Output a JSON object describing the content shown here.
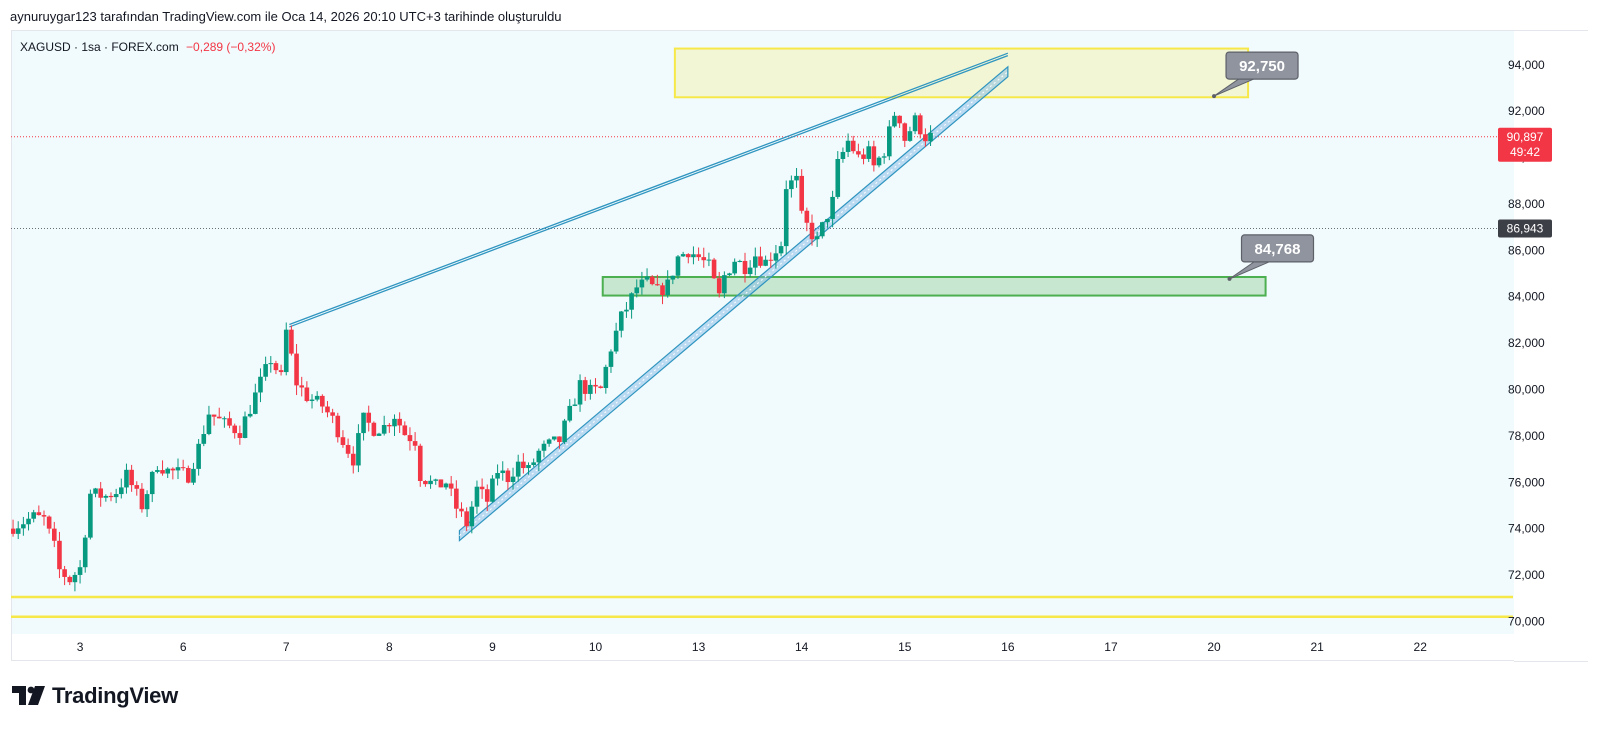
{
  "header": {
    "note": "aynuruygar123 tarafından TradingView.com ile Oca 14, 2026 20:10 UTC+3 tarihinde oluşturuldu"
  },
  "legend": {
    "symbol": "XAGUSD · 1sa · FOREX.com",
    "change": "−0,289 (−0,32%)"
  },
  "brand": {
    "name": "TradingView"
  },
  "colors": {
    "up": "#089981",
    "down": "#f23645",
    "bg": "#f1fafc",
    "yellow": "#f7e84a",
    "green": "#4caf50",
    "channel": "#2f95c0"
  },
  "chart_data": {
    "type": "candlestick",
    "symbol": "XAGUSD",
    "interval": "1sa",
    "ylim": [
      69500,
      95500
    ],
    "y_ticks": [
      "70,000",
      "72,000",
      "74,000",
      "76,000",
      "78,000",
      "80,000",
      "82,000",
      "84,000",
      "86,000",
      "88,000",
      "90,000",
      "92,000",
      "94,000"
    ],
    "x_labels": [
      {
        "t": 3,
        "label": "3"
      },
      {
        "t": 13,
        "label": "6"
      },
      {
        "t": 23,
        "label": "7"
      },
      {
        "t": 33,
        "label": "8"
      },
      {
        "t": 43,
        "label": "9"
      },
      {
        "t": 53,
        "label": "10"
      },
      {
        "t": 63,
        "label": "13"
      },
      {
        "t": 73,
        "label": "14"
      },
      {
        "t": 83,
        "label": "15"
      },
      {
        "t": 93,
        "label": "16"
      },
      {
        "t": 103,
        "label": "17"
      },
      {
        "t": 113,
        "label": "20"
      },
      {
        "t": 123,
        "label": "21"
      },
      {
        "t": 133,
        "label": "22"
      }
    ],
    "x_range": [
      -3.7,
      142
    ],
    "anchors": [
      [
        -3.5,
        74000
      ],
      [
        -1,
        74500
      ],
      [
        0,
        74400
      ],
      [
        1,
        73200
      ],
      [
        1.5,
        72200
      ],
      [
        2.5,
        71800
      ],
      [
        3.5,
        72300
      ],
      [
        4.5,
        75500
      ],
      [
        6,
        75400
      ],
      [
        7,
        75600
      ],
      [
        8,
        76300
      ],
      [
        9.5,
        75000
      ],
      [
        11,
        76800
      ],
      [
        12,
        76500
      ],
      [
        14,
        76300
      ],
      [
        15,
        77500
      ],
      [
        16,
        79000
      ],
      [
        17.5,
        78500
      ],
      [
        19,
        78200
      ],
      [
        20,
        79200
      ],
      [
        21,
        80300
      ],
      [
        22,
        81300
      ],
      [
        23,
        80500
      ],
      [
        23.5,
        82500
      ],
      [
        24.5,
        80300
      ],
      [
        25.5,
        79700
      ],
      [
        27,
        79300
      ],
      [
        28,
        78700
      ],
      [
        29,
        77800
      ],
      [
        30,
        77000
      ],
      [
        31,
        78700
      ],
      [
        32,
        78300
      ],
      [
        33,
        78400
      ],
      [
        34,
        78900
      ],
      [
        35,
        78100
      ],
      [
        36,
        77800
      ],
      [
        36.5,
        76300
      ],
      [
        38,
        75800
      ],
      [
        39,
        76000
      ],
      [
        40,
        74900
      ],
      [
        41,
        74200
      ],
      [
        42,
        75700
      ],
      [
        43,
        75200
      ],
      [
        44,
        76500
      ],
      [
        45,
        76200
      ],
      [
        46,
        76800
      ],
      [
        47,
        76500
      ],
      [
        48,
        77300
      ],
      [
        49,
        77600
      ],
      [
        50,
        77800
      ],
      [
        51,
        79000
      ],
      [
        52,
        80200
      ],
      [
        53,
        79900
      ],
      [
        54,
        80000
      ],
      [
        55,
        81800
      ],
      [
        56,
        83100
      ],
      [
        56.5,
        83500
      ],
      [
        57.5,
        84400
      ],
      [
        58.5,
        84600
      ],
      [
        59.5,
        84200
      ],
      [
        60.5,
        84500
      ],
      [
        61.5,
        85700
      ],
      [
        62.5,
        86000
      ],
      [
        63.5,
        85700
      ],
      [
        64.5,
        85300
      ],
      [
        65,
        84600
      ],
      [
        65.5,
        84000
      ],
      [
        66,
        84900
      ],
      [
        67,
        85600
      ],
      [
        68,
        85300
      ],
      [
        69,
        85800
      ],
      [
        70,
        85500
      ],
      [
        71.5,
        86300
      ],
      [
        72,
        88800
      ],
      [
        73,
        89000
      ],
      [
        73.5,
        87400
      ],
      [
        74.5,
        86700
      ],
      [
        75,
        86400
      ],
      [
        75.5,
        87000
      ],
      [
        76.5,
        88100
      ],
      [
        77,
        89700
      ],
      [
        78,
        90700
      ],
      [
        79,
        90000
      ],
      [
        80,
        90200
      ],
      [
        80.5,
        89600
      ],
      [
        81.5,
        90300
      ],
      [
        82.5,
        91900
      ],
      [
        83,
        91700
      ],
      [
        83.5,
        90800
      ],
      [
        84.5,
        91600
      ],
      [
        85.5,
        90900
      ]
    ],
    "candle_range": [
      -3.5,
      85.5
    ],
    "last_price": "90,897",
    "countdown": "49:42",
    "prev_close": "86,943",
    "drawings": {
      "resistance_zone": {
        "t1": 60.7,
        "t2": 116.3,
        "y1": 92600,
        "y2": 94700
      },
      "demand_zone": {
        "t1": 53.7,
        "t2": 118,
        "y1": 84050,
        "y2": 84850
      },
      "resistance_line": {
        "t1": 23.3,
        "y1": 82800,
        "t2": 93,
        "y2": 94500
      },
      "channel": {
        "t1": 39.8,
        "y1": 73700,
        "t2": 93,
        "y2": 93700
      },
      "support_band": {
        "y1": 70200,
        "y2": 71050
      },
      "callouts": [
        {
          "text": "92,750",
          "t": 113,
          "y": 92650
        },
        {
          "text": "84,768",
          "t": 114.5,
          "y": 84768
        }
      ]
    }
  }
}
